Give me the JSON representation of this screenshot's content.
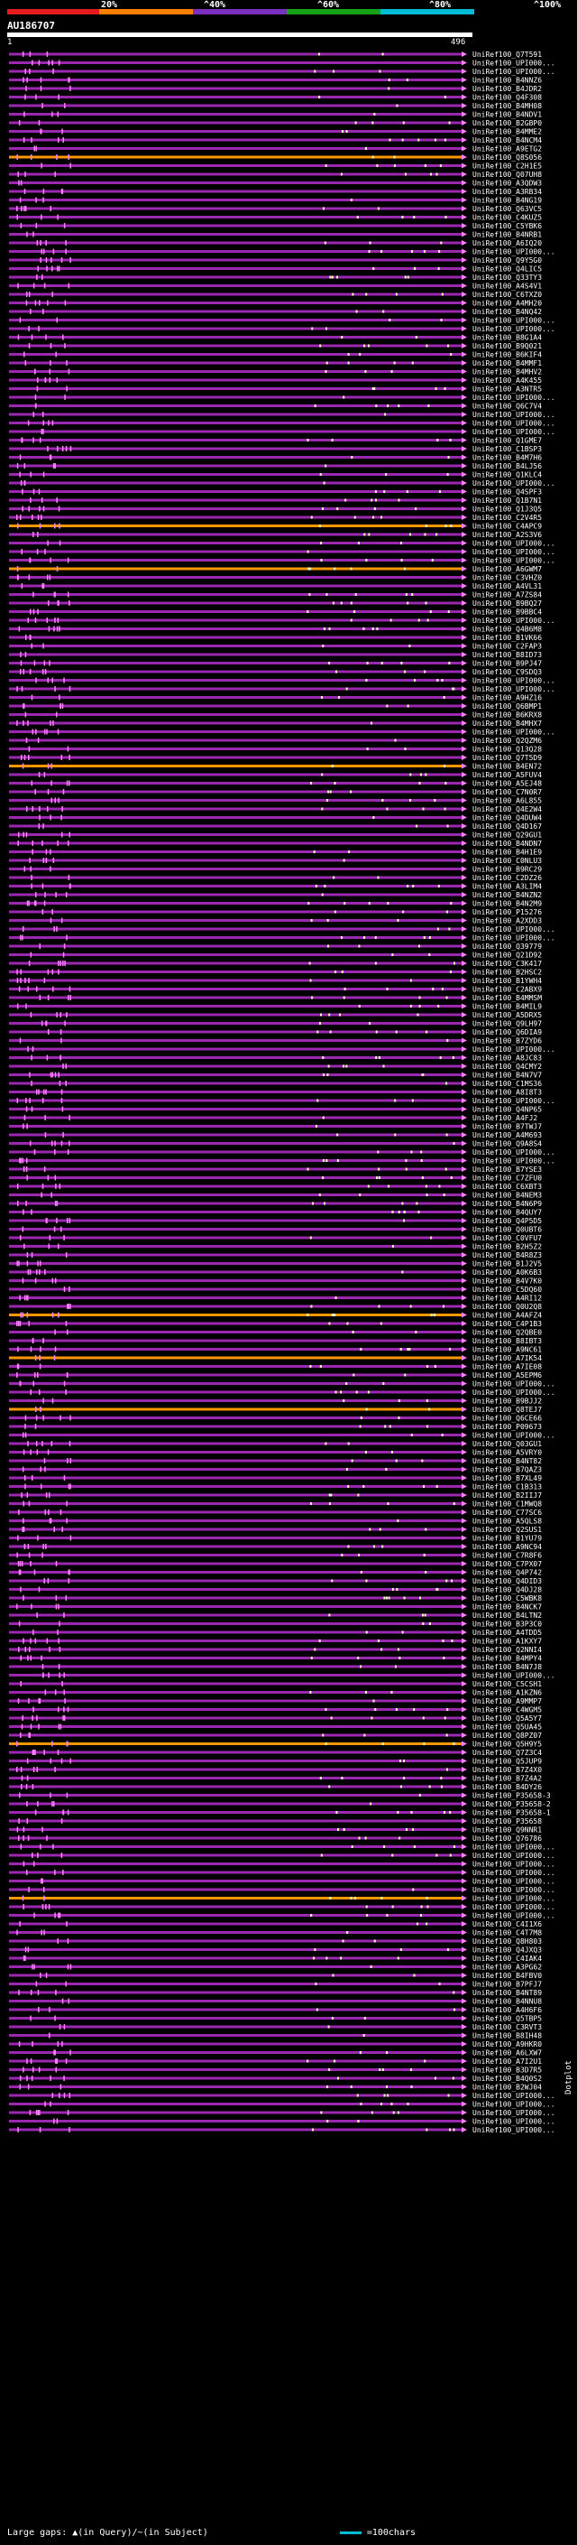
{
  "scale": {
    "ticks": [
      "20%",
      "^40%",
      "^60%",
      "^80%",
      "^100%"
    ],
    "colors": [
      "#e41a1c",
      "#ff7f00",
      "#7b2fbe",
      "#16a316",
      "#00bcd4"
    ]
  },
  "query": {
    "title": "AU186707",
    "start": "1",
    "end": "496"
  },
  "footer": {
    "text": "Large gaps: ▲(in Query)/~(in Subject)",
    "legend": "=100chars"
  },
  "side_note": "Dotplot",
  "colors": {
    "purple": "#9c27b0",
    "orange": "#ff9800",
    "pink": "#ff80ff",
    "dot": "#ffffcc"
  },
  "chart_data": {
    "type": "alignment-overview",
    "title": "AU186707",
    "query_length": 496,
    "hits": [
      "UniRef100_Q7T591",
      "UniRef100_UPI000...",
      "UniRef100_UPI000...",
      "UniRef100_B4NNZ6",
      "UniRef100_B4JDR2",
      "UniRef100_Q4F308",
      "UniRef100_B4MH08",
      "UniRef100_B4NDV1",
      "UniRef100_B2GBP0",
      "UniRef100_B4MME2",
      "UniRef100_B4NCM4",
      "UniRef100_A9ETG2",
      "UniRef100_Q8S056",
      "UniRef100_C2H1E5",
      "UniRef100_Q07UH8",
      "UniRef100_A3QDW3",
      "UniRef100_A3RB34",
      "UniRef100_B4NG19",
      "UniRef100_Q63VC5",
      "UniRef100_C4KUZ5",
      "UniRef100_C5YBK6",
      "UniRef100_B4NRB1",
      "UniRef100_A6IQ20",
      "UniRef100_UPI000...",
      "UniRef100_Q9Y5G0",
      "UniRef100_Q4LIC5",
      "UniRef100_Q33TY3",
      "UniRef100_A4S4V1",
      "UniRef100_C6TXZ0",
      "UniRef100_A4MH20",
      "UniRef100_B4NQ42",
      "UniRef100_UPI000...",
      "UniRef100_UPI000...",
      "UniRef100_B8G1A4",
      "UniRef100_B9Q021",
      "UniRef100_B6KIF4",
      "UniRef100_B4MMF1",
      "UniRef100_B4MHV2",
      "UniRef100_A4K455",
      "UniRef100_A3NTR5",
      "UniRef100_UPI000...",
      "UniRef100_Q6C7V4",
      "UniRef100_UPI000...",
      "UniRef100_UPI000...",
      "UniRef100_UPI000...",
      "UniRef100_Q1GME7",
      "UniRef100_C1BSP3",
      "UniRef100_B4M7H6",
      "UniRef100_B4LJ56",
      "UniRef100_Q1KLC4",
      "UniRef100_UPI000...",
      "UniRef100_Q4SPF3",
      "UniRef100_Q1B7N1",
      "UniRef100_Q1J3Q5",
      "UniRef100_C2V4R5",
      "UniRef100_C4APC9",
      "UniRef100_A2S3V6",
      "UniRef100_UPI000...",
      "UniRef100_UPI000...",
      "UniRef100_UPI000...",
      "UniRef100_A6GWM7",
      "UniRef100_C3VHZ0",
      "UniRef100_A4VL31",
      "UniRef100_A7ZS84",
      "UniRef100_B9BQ27",
      "UniRef100_B9BBC4",
      "UniRef100_UPI000...",
      "UniRef100_Q4B6M8",
      "UniRef100_B1VK66",
      "UniRef100_C2FAP3",
      "UniRef100_B8ID73",
      "UniRef100_B9PJ47",
      "UniRef100_C9SDQ3",
      "UniRef100_UPI000...",
      "UniRef100_UPI000...",
      "UniRef100_A9HZ16",
      "UniRef100_Q6BMP1",
      "UniRef100_B6KRX8",
      "UniRef100_B4MHX7",
      "UniRef100_UPI000...",
      "UniRef100_Q2QZM6",
      "UniRef100_Q13Q28",
      "UniRef100_Q7T5D9",
      "UniRef100_B4EN72",
      "UniRef100_A5FUV4",
      "UniRef100_A5EJ48",
      "UniRef100_C7N0R7",
      "UniRef100_A6L855",
      "UniRef100_Q4E2W4",
      "UniRef100_Q4DUW4",
      "UniRef100_Q4D167",
      "UniRef100_Q29GU1",
      "UniRef100_B4NDN7",
      "UniRef100_B4H1E9",
      "UniRef100_C0NLU3",
      "UniRef100_B9RC29",
      "UniRef100_C2DZ26",
      "UniRef100_A3LIM4",
      "UniRef100_B4NZN2",
      "UniRef100_B4N2M9",
      "UniRef100_P15276",
      "UniRef100_A2XDD3",
      "UniRef100_UPI000...",
      "UniRef100_UPI000...",
      "UniRef100_Q39779",
      "UniRef100_Q21D92",
      "UniRef100_C3K417",
      "UniRef100_B2HSC2",
      "UniRef100_B1YWH4",
      "UniRef100_C2ABX9",
      "UniRef100_B4MMSM",
      "UniRef100_B4MIL9",
      "UniRef100_A5DRX5",
      "UniRef100_Q9LH97",
      "UniRef100_Q6DIA9",
      "UniRef100_B7ZYD6",
      "UniRef100_UPI000...",
      "UniRef100_A8JC83",
      "UniRef100_Q4CMY2",
      "UniRef100_B4N7V7",
      "UniRef100_C1MS36",
      "UniRef100_A8I8T3",
      "UniRef100_UPI000...",
      "UniRef100_Q4NP65",
      "UniRef100_A4FJ2",
      "UniRef100_B7TWJ7",
      "UniRef100_A4M693",
      "UniRef100_Q9A8S4",
      "UniRef100_UPI000...",
      "UniRef100_UPI000...",
      "UniRef100_B7YSE3",
      "UniRef100_C7ZFU0",
      "UniRef100_C6XBT3",
      "UniRef100_B4NEM3",
      "UniRef100_B4N6P9",
      "UniRef100_B4QUY7",
      "UniRef100_Q4P5D5",
      "UniRef100_Q0UBT6",
      "UniRef100_C0VFU7",
      "UniRef100_B2H5Z2",
      "UniRef100_B4R8Z3",
      "UniRef100_B1J2V5",
      "UniRef100_A0K6B3",
      "UniRef100_B4V7K0",
      "UniRef100_C5DQ60",
      "UniRef100_A4RI12",
      "UniRef100_Q0U2Q8",
      "UniRef100_A4AFZ4",
      "UniRef100_C4P1B3",
      "UniRef100_Q2QBE0",
      "UniRef100_B8IBT3",
      "UniRef100_A9NC61",
      "UniRef100_A7IK54",
      "UniRef100_A7IE08",
      "UniRef100_A5EPM6",
      "UniRef100_UPI000...",
      "UniRef100_UPI000...",
      "UniRef100_B9BJJ2",
      "UniRef100_Q8TEJ7",
      "UniRef100_Q6CE66",
      "UniRef100_P09673",
      "UniRef100_UPI000...",
      "UniRef100_Q03GU1",
      "UniRef100_A5VRY0",
      "UniRef100_B4NT82",
      "UniRef100_B7QAZ3",
      "UniRef100_B7XL49",
      "UniRef100_C1B313",
      "UniRef100_B2IIJ7",
      "UniRef100_C1MWQ8",
      "UniRef100_C77SC6",
      "UniRef100_A5QLS8",
      "UniRef100_Q2SUS1",
      "UniRef100_B1YU79",
      "UniRef100_A9NC94",
      "UniRef100_C7R8F6",
      "UniRef100_C7PX07",
      "UniRef100_Q4P742",
      "UniRef100_Q4DID3",
      "UniRef100_Q4DJ28",
      "UniRef100_C5WBK8",
      "UniRef100_B4NCK7",
      "UniRef100_B4LTN2",
      "UniRef100_B3P3C0",
      "UniRef100_A4TDD5",
      "UniRef100_A1KXY7",
      "UniRef100_Q2NNI4",
      "UniRef100_B4MPY4",
      "UniRef100_B4N7J8",
      "UniRef100_UPI000...",
      "UniRef100_C5CSH1",
      "UniRef100_A1KZN6",
      "UniRef100_A9MMP7",
      "UniRef100_C4WGM5",
      "UniRef100_Q5A5Y7",
      "UniRef100_Q5UA45",
      "UniRef100_Q8PZ07",
      "UniRef100_Q5H9Y5",
      "UniRef100_Q7Z3C4",
      "UniRef100_Q5JUP9",
      "UniRef100_B7Z4X0",
      "UniRef100_B7Z4A2",
      "UniRef100_B4DY26",
      "UniRef100_P35658-3",
      "UniRef100_P35658-2",
      "UniRef100_P35658-1",
      "UniRef100_P35658",
      "UniRef100_Q9NNR1",
      "UniRef100_Q76786",
      "UniRef100_UPI000...",
      "UniRef100_UPI000...",
      "UniRef100_UPI000...",
      "UniRef100_UPI000...",
      "UniRef100_UPI000...",
      "UniRef100_UPI000...",
      "UniRef100_UPI000...",
      "UniRef100_UPI000...",
      "UniRef100_UPI000...",
      "UniRef100_C4I1X6",
      "UniRef100_C4T7M8",
      "UniRef100_Q8H803",
      "UniRef100_Q4JXQ3",
      "UniRef100_C4IAK4",
      "UniRef100_A3PG62",
      "UniRef100_B4FBV0",
      "UniRef100_B7PFJ7",
      "UniRef100_B4NT89",
      "UniRef100_B4NNU8",
      "UniRef100_A4H6F6",
      "UniRef100_Q5TBP5",
      "UniRef100_C3RVT3",
      "UniRef100_B8IH48",
      "UniRef100_A9HKR0",
      "UniRef100_A6LXW7",
      "UniRef100_A7I2U1",
      "UniRef100_B3D7R5",
      "UniRef100_B4Q0S2",
      "UniRef100_B2WJ04",
      "UniRef100_UPI000...",
      "UniRef100_UPI000...",
      "UniRef100_UPI000...",
      "UniRef100_UPI000...",
      "UniRef100_UPI000..."
    ]
  }
}
